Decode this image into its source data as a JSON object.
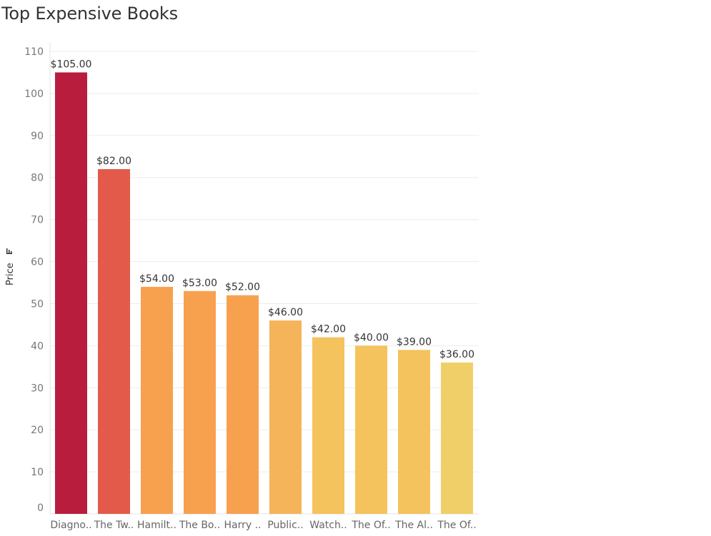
{
  "chart_data": {
    "type": "bar",
    "title": "Top Expensive Books",
    "ylabel": "Price",
    "xlabel": "",
    "ylim": [
      0,
      110
    ],
    "yticks": [
      0,
      10,
      20,
      30,
      40,
      50,
      60,
      70,
      80,
      90,
      100,
      110
    ],
    "grid": true,
    "categories": [
      "Diagno..",
      "The Tw..",
      "Hamilt..",
      "The Bo..",
      "Harry ..",
      "Public..",
      "Watch..",
      "The Of..",
      "The Al..",
      "The Of.."
    ],
    "values": [
      105,
      82,
      54,
      53,
      52,
      46,
      42,
      40,
      39,
      36
    ],
    "data_labels": [
      "$105.00",
      "$82.00",
      "$54.00",
      "$53.00",
      "$52.00",
      "$46.00",
      "$42.00",
      "$40.00",
      "$39.00",
      "$36.00"
    ],
    "colors": [
      "#b91d3e",
      "#e35a4a",
      "#f7a14f",
      "#f7a14f",
      "#f7a14f",
      "#f5b45a",
      "#f4c35e",
      "#f4c35e",
      "#f4c35e",
      "#f1cf68"
    ],
    "sort_icon": "sort-descending-icon"
  }
}
